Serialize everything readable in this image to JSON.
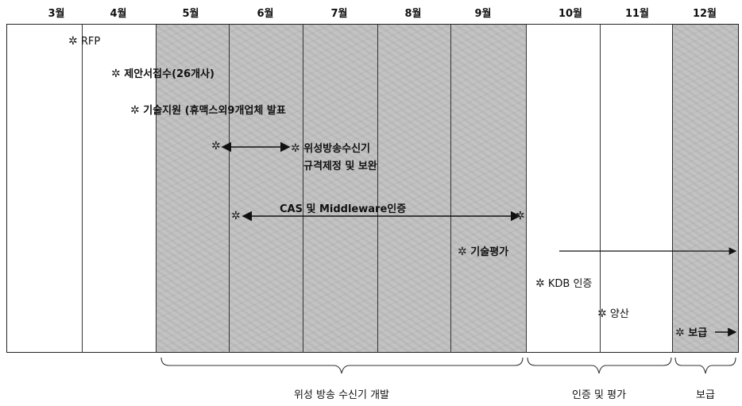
{
  "months": [
    "3월",
    "4월",
    "5월",
    "6월",
    "7월",
    "8월",
    "9월",
    "10월",
    "11월",
    "12월"
  ],
  "events": {
    "rfp": "RFP",
    "proposal": "제안서접수(26개사)",
    "tech_support": "기술지원 (휴맥스외9개업체 발표",
    "spec_line1": "위성방송수신기",
    "spec_line2": "규격제정 및 보완",
    "cas": "CAS 및 Middleware인증",
    "tech_eval": "기술평가",
    "kdb": "KDB 인증",
    "mass_production": "양산",
    "distribution": "보급"
  },
  "phases": {
    "development": "위성 방송 수신기 개발",
    "certification": "인증 및 평가",
    "distribution": "보급"
  },
  "icons": {
    "marker": "asterisk-star"
  }
}
